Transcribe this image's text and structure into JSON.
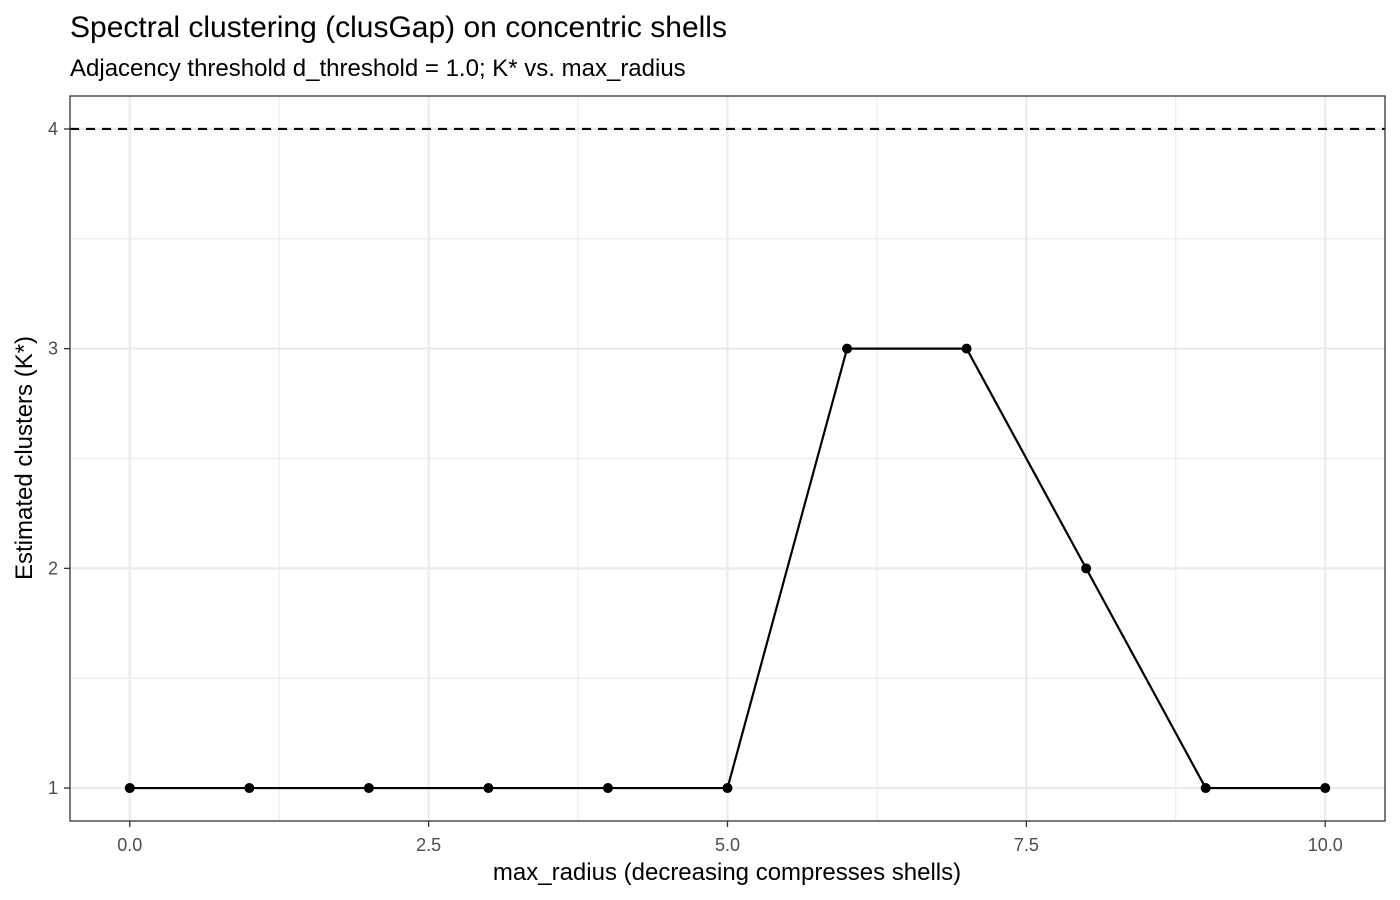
{
  "chart_data": {
    "type": "line",
    "title": "Spectral clustering (clusGap) on concentric shells",
    "subtitle": "Adjacency threshold d_threshold = 1.0; K* vs. max_radius",
    "xlabel": "max_radius (decreasing compresses shells)",
    "ylabel": "Estimated clusters (K*)",
    "x": [
      0,
      1,
      2,
      3,
      4,
      5,
      6,
      7,
      8,
      9,
      10
    ],
    "y": [
      1,
      1,
      1,
      1,
      1,
      1,
      3,
      3,
      2,
      1,
      1
    ],
    "xlim": [
      -0.5,
      10.5
    ],
    "ylim": [
      0.85,
      4.15
    ],
    "x_ticks": [
      0,
      2.5,
      5,
      7.5,
      10
    ],
    "x_tick_labels": [
      "0.0",
      "2.5",
      "5.0",
      "7.5",
      "10.0"
    ],
    "x_minor_ticks": [
      1.25,
      3.75,
      6.25,
      8.75
    ],
    "y_ticks": [
      1,
      2,
      3,
      4
    ],
    "y_tick_labels": [
      "1",
      "2",
      "3",
      "4"
    ],
    "y_minor_ticks": [
      1.5,
      2.5,
      3.5
    ],
    "reference_line": {
      "y": 4,
      "style": "dashed"
    },
    "grid": true,
    "line_color": "#000000",
    "point_color": "#000000",
    "grid_color": "#ebebeb",
    "reference_line_color": "#000000"
  }
}
